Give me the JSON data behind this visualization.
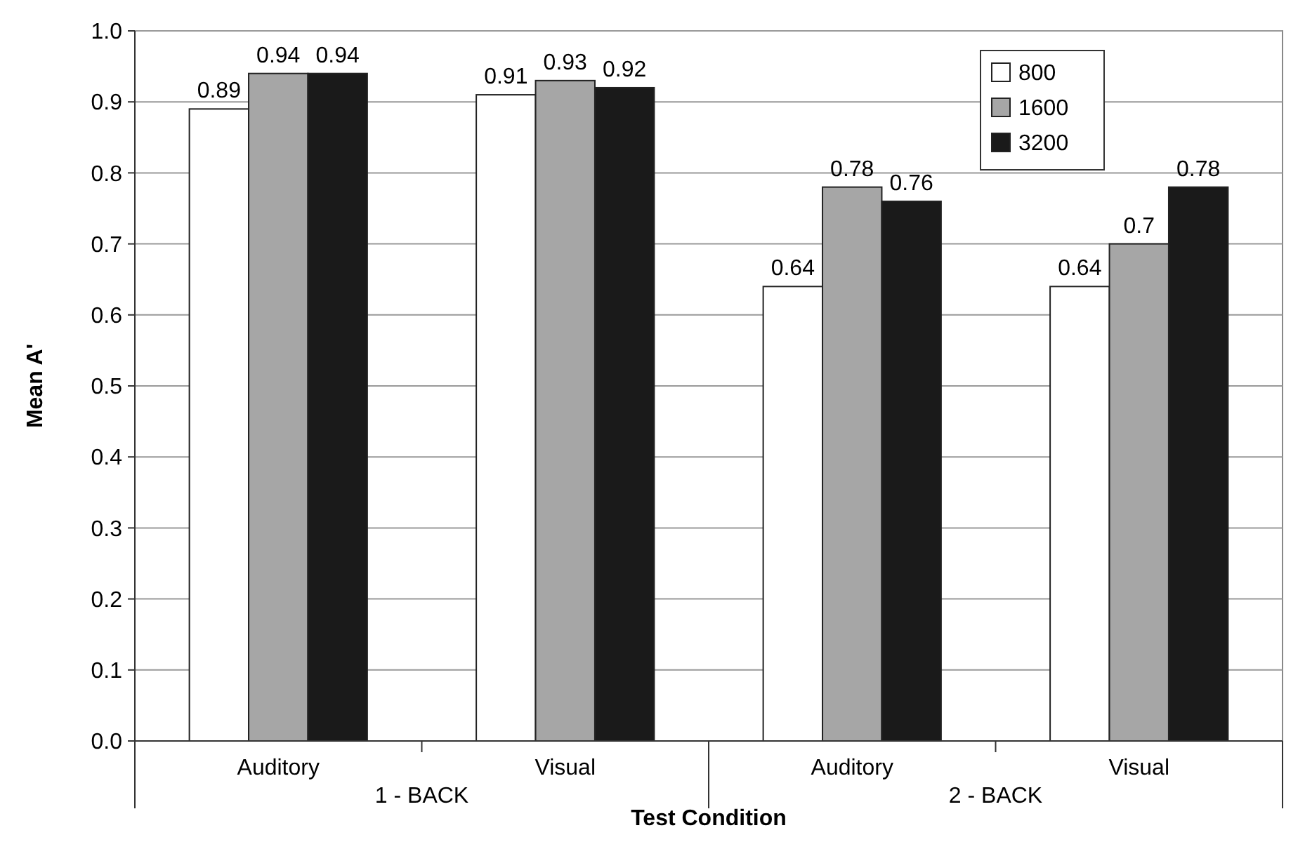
{
  "chart_data": {
    "type": "bar",
    "xlabel": "Test Condition",
    "ylabel": "Mean A'",
    "categories": [
      "Auditory",
      "Visual",
      "Auditory",
      "Visual"
    ],
    "annotations": [
      "1 - BACK",
      "2 - BACK"
    ],
    "series": [
      {
        "name": "800",
        "color": "#ffffff",
        "values": [
          0.89,
          0.91,
          0.64,
          0.64
        ]
      },
      {
        "name": "1600",
        "color": "#a6a6a6",
        "values": [
          0.94,
          0.93,
          0.78,
          0.7
        ]
      },
      {
        "name": "3200",
        "color": "#1a1a1a",
        "values": [
          0.94,
          0.92,
          0.76,
          0.78
        ]
      }
    ],
    "value_labels": [
      [
        "0.89",
        "0.91",
        "0.64",
        "0.64"
      ],
      [
        "0.94",
        "0.93",
        "0.78",
        "0.7"
      ],
      [
        "0.94",
        "0.92",
        "0.76",
        "0.78"
      ]
    ],
    "ylim": [
      0,
      1
    ],
    "yticks": [
      {
        "value": 0,
        "label": "0.0"
      },
      {
        "value": 0.1,
        "label": "0.1"
      },
      {
        "value": 0.2,
        "label": "0.2"
      },
      {
        "value": 0.3,
        "label": "0.3"
      },
      {
        "value": 0.4,
        "label": "0.4"
      },
      {
        "value": 0.5,
        "label": "0.5"
      },
      {
        "value": 0.6,
        "label": "0.6"
      },
      {
        "value": 0.7,
        "label": "0.7"
      },
      {
        "value": 0.8,
        "label": "0.8"
      },
      {
        "value": 0.9,
        "label": "0.9"
      },
      {
        "value": 1,
        "label": "1.0"
      }
    ],
    "grid": "y",
    "legend": "top right"
  }
}
